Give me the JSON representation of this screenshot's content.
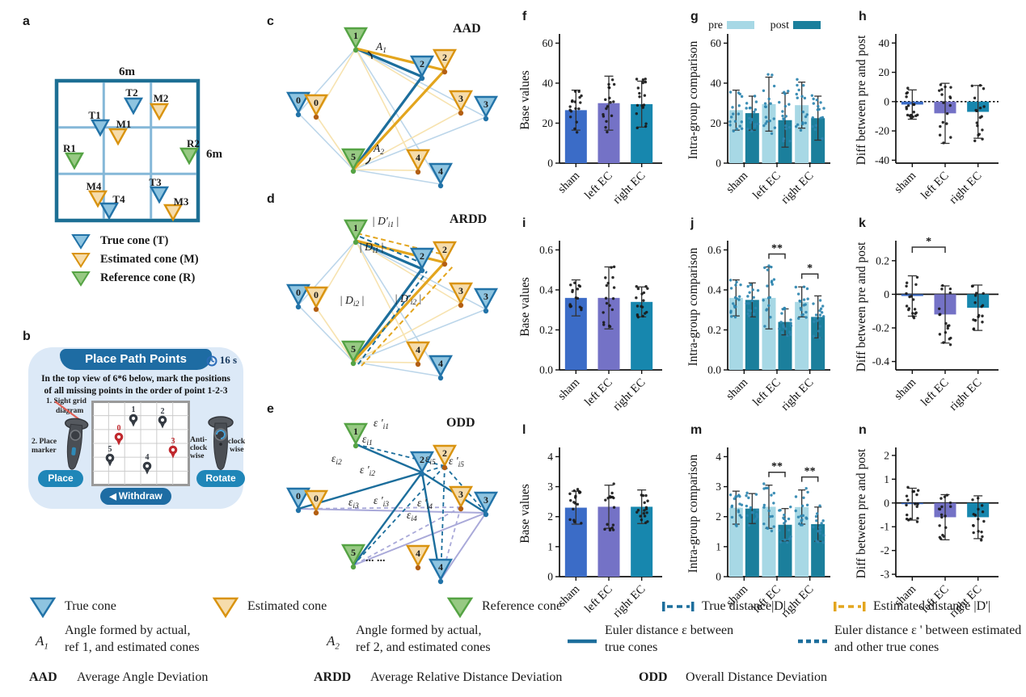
{
  "colors": {
    "sham": "#3b6cc7",
    "left_ec": "#7472c6",
    "right_ec": "#1787ae",
    "pre": "#a7d8e5",
    "post": "#1b7f9c",
    "teal_line": "#1c6e9c",
    "orange_line": "#e3a51d",
    "light_blue_line": "#bcd6ea",
    "light_yellow_line": "#f7e3b0",
    "purple_line": "#a9a9d9",
    "cone_true": "#8ec4e0",
    "cone_true_border": "#2273a8",
    "cone_true_dot": "#2273a8",
    "cone_est": "#f6dcab",
    "cone_est_border": "#d9930f",
    "cone_est_dot": "#b35f13",
    "cone_ref": "#97c983",
    "cone_ref_border": "#55a344",
    "cone_ref_dot": "#55a344",
    "grid_border": "#1d6f94",
    "grid_inner": "#85b8d8",
    "red_pin": "#c0282d",
    "dark_pin": "#343a42",
    "banner": "#1e6ca3",
    "button": "#1f86b8",
    "card_bg": "#dce9f7"
  },
  "icons": {
    "back_arrow": "◀",
    "clock_icon": "clock",
    "laser_icon": "laser-line"
  },
  "panel_a": {
    "label": "a",
    "dim_top": "6m",
    "dim_right": "6m",
    "cones": [
      {
        "id": "T2",
        "label": "T2",
        "type": "true"
      },
      {
        "id": "M2",
        "label": "M2",
        "type": "est"
      },
      {
        "id": "T1",
        "label": "T1",
        "type": "true"
      },
      {
        "id": "M1",
        "label": "M1",
        "type": "est"
      },
      {
        "id": "R1",
        "label": "R1",
        "type": "ref"
      },
      {
        "id": "R2",
        "label": "R2",
        "type": "ref"
      },
      {
        "id": "M4",
        "label": "M4",
        "type": "est"
      },
      {
        "id": "T4",
        "label": "T4",
        "type": "true"
      },
      {
        "id": "T3",
        "label": "T3",
        "type": "true"
      },
      {
        "id": "M3",
        "label": "M3",
        "type": "est"
      }
    ],
    "legend": [
      {
        "label": "True cone (T)",
        "type": "true"
      },
      {
        "label": "Estimated cone (M)",
        "type": "est"
      },
      {
        "label": "Reference cone (R)",
        "type": "ref"
      }
    ]
  },
  "panel_b": {
    "label": "b",
    "title": "Place Path Points",
    "timer": "16 s",
    "instruction1": "In the top view of 6*6 below, mark the positions",
    "instruction2": "of all missing points in the order of point 1-2-3",
    "hint_sight1": "1. Sight grid",
    "hint_sight2": "diagram",
    "hint_place1": "2. Place",
    "hint_place2": "marker",
    "hint_anti1": "Anti-",
    "hint_anti2": "clock",
    "hint_anti3": "wise",
    "hint_clock1": "clock",
    "hint_clock2": "wise",
    "place_button": "Place",
    "rotate_button": "Rotate",
    "withdraw_button": "Withdraw",
    "pins": [
      {
        "label": "1",
        "color": "dark"
      },
      {
        "label": "2",
        "color": "dark"
      },
      {
        "label": "0",
        "color": "red"
      },
      {
        "label": "3",
        "color": "red"
      },
      {
        "label": "5",
        "color": "dark"
      },
      {
        "label": "4",
        "color": "dark"
      }
    ]
  },
  "panel_c": {
    "label": "c",
    "title": "AAD",
    "cones": {
      "g1": "1",
      "b0": "0",
      "o0": "0",
      "b2": "2",
      "o2": "2",
      "o3": "3",
      "b3": "3",
      "g5": "5",
      "o4": "4",
      "b4": "4"
    },
    "labels": {
      "A1": {
        "sym": "A",
        "sub": "1"
      },
      "A2": {
        "sym": "A",
        "sub": "2"
      }
    }
  },
  "panel_d": {
    "label": "d",
    "title": "ARDD",
    "cones": {
      "g1": "1",
      "b0": "0",
      "o0": "0",
      "b2": "2",
      "o2": "2",
      "o3": "3",
      "b3": "3",
      "g5": "5",
      "o4": "4",
      "b4": "4"
    },
    "labels": {
      "Dp1": {
        "pre": "| D'",
        "sub": "i1",
        "post": " |"
      },
      "Di1": {
        "pre": "| D",
        "sub": "i1",
        "post": " |"
      },
      "Di2": {
        "pre": "| D",
        "sub": "i2",
        "post": " |"
      },
      "Dp2": {
        "pre": "| D'",
        "sub": "i2",
        "post": " |"
      }
    }
  },
  "panel_e": {
    "label": "e",
    "title": "ODD",
    "cones": {
      "g1": "1",
      "b0": "0",
      "o0": "0",
      "b2": "2",
      "o2": "2",
      "o3": "3",
      "b3": "3",
      "g5": "5",
      "o4": "4",
      "b4": "4"
    },
    "labels": {
      "e1p": {
        "pre": "ε '",
        "sub": "i1"
      },
      "e1": {
        "pre": "ε",
        "sub": "i1"
      },
      "e2": {
        "pre": "ε",
        "sub": "i2"
      },
      "e2p": {
        "pre": "ε '",
        "sub": "i2"
      },
      "e5": {
        "pre": "ε",
        "sub": "i5"
      },
      "e5p": {
        "pre": "ε '",
        "sub": "i5"
      },
      "e3": {
        "pre": "ε",
        "sub": "i3"
      },
      "e3p": {
        "pre": "ε '",
        "sub": "i3"
      },
      "e4p": {
        "pre": "ε '",
        "sub": "i4"
      },
      "e4": {
        "pre": "ε",
        "sub": "i4"
      },
      "ellipsis": "... ..."
    }
  },
  "chart_data": [
    {
      "id": "f",
      "panel_letter": "f",
      "type": "bar",
      "ylabel": "Base values",
      "ylim": [
        0,
        63
      ],
      "yticks": [
        [
          0,
          "0"
        ],
        [
          20,
          "20"
        ],
        [
          40,
          "40"
        ],
        [
          60,
          "60"
        ]
      ],
      "categories": [
        "sham",
        "left EC",
        "right EC"
      ],
      "values": [
        26.5,
        30,
        29.5
      ],
      "errors": [
        10,
        13.5,
        11.5
      ],
      "dot_color": "#1a1a1a",
      "seed": 3
    },
    {
      "id": "g",
      "panel_letter": "g",
      "type": "grouped",
      "ylabel": "Intra-group comparison",
      "ylim": [
        0,
        63
      ],
      "yticks": [
        [
          0,
          "0"
        ],
        [
          20,
          "20"
        ],
        [
          40,
          "40"
        ],
        [
          60,
          "60"
        ]
      ],
      "categories": [
        "sham",
        "left EC",
        "right EC"
      ],
      "legend": [
        "pre",
        "post"
      ],
      "series": [
        {
          "name": "pre",
          "values": [
            26.5,
            29.5,
            29
          ],
          "errors": [
            10,
            13.5,
            11.5
          ]
        },
        {
          "name": "post",
          "values": [
            25,
            21.5,
            22.5
          ],
          "errors": [
            8.5,
            13.5,
            11
          ]
        }
      ],
      "dot_color": "#2e86b0",
      "seed": 5
    },
    {
      "id": "h",
      "panel_letter": "h",
      "type": "bar",
      "zero_line": "dotted",
      "ylabel": "Diff between pre and post",
      "ylim": [
        -42,
        44
      ],
      "yticks": [
        [
          -40,
          "-40"
        ],
        [
          -20,
          "-20"
        ],
        [
          0,
          "0"
        ],
        [
          20,
          "20"
        ],
        [
          40,
          "40"
        ]
      ],
      "categories": [
        "sham",
        "left EC",
        "right EC"
      ],
      "values": [
        -2,
        -8,
        -7
      ],
      "errors": [
        10,
        20.5,
        18
      ],
      "dot_color": "#1a1a1a",
      "seed": 7
    },
    {
      "id": "i",
      "panel_letter": "i",
      "type": "bar",
      "ylabel": "Base values",
      "ylim": [
        0,
        0.63
      ],
      "yticks": [
        [
          0,
          "0.0"
        ],
        [
          0.2,
          "0.2"
        ],
        [
          0.4,
          "0.4"
        ],
        [
          0.6,
          "0.6"
        ]
      ],
      "categories": [
        "sham",
        "left EC",
        "right EC"
      ],
      "values": [
        0.36,
        0.36,
        0.34
      ],
      "errors": [
        0.09,
        0.155,
        0.075
      ],
      "dot_color": "#1a1a1a",
      "seed": 11
    },
    {
      "id": "j",
      "panel_letter": "j",
      "type": "grouped",
      "ylabel": "Intra-group comparison",
      "ylim": [
        0,
        0.63
      ],
      "yticks": [
        [
          0,
          "0.0"
        ],
        [
          0.2,
          "0.2"
        ],
        [
          0.4,
          "0.4"
        ],
        [
          0.6,
          "0.6"
        ]
      ],
      "categories": [
        "sham",
        "left EC",
        "right EC"
      ],
      "series": [
        {
          "name": "pre",
          "values": [
            0.36,
            0.36,
            0.34
          ],
          "errors": [
            0.09,
            0.155,
            0.075
          ]
        },
        {
          "name": "post",
          "values": [
            0.35,
            0.24,
            0.265
          ],
          "errors": [
            0.085,
            0.065,
            0.105
          ]
        }
      ],
      "sig_pairs": [
        {
          "cat": 1,
          "label": "**"
        },
        {
          "cat": 2,
          "label": "*"
        }
      ],
      "dot_color": "#2e86b0",
      "seed": 13
    },
    {
      "id": "k",
      "panel_letter": "k",
      "type": "bar",
      "zero_line": "solid",
      "ylabel": "Diff between pre and post",
      "ylim": [
        -0.45,
        0.3
      ],
      "yticks": [
        [
          -0.4,
          "-0.4"
        ],
        [
          -0.2,
          "-0.2"
        ],
        [
          0,
          "0"
        ],
        [
          0.2,
          "0.2"
        ]
      ],
      "categories": [
        "sham",
        "left EC",
        "right EC"
      ],
      "values": [
        -0.01,
        -0.12,
        -0.08
      ],
      "errors": [
        0.12,
        0.17,
        0.135
      ],
      "sig_span": {
        "from": 0,
        "to": 1,
        "label": "*"
      },
      "dot_color": "#1a1a1a",
      "seed": 17
    },
    {
      "id": "l",
      "panel_letter": "l",
      "type": "bar",
      "ylabel": "Base values",
      "ylim": [
        0,
        4.2
      ],
      "yticks": [
        [
          0,
          "0"
        ],
        [
          1,
          "1"
        ],
        [
          2,
          "2"
        ],
        [
          3,
          "3"
        ],
        [
          4,
          "4"
        ]
      ],
      "categories": [
        "sham",
        "left EC",
        "right EC"
      ],
      "values": [
        2.3,
        2.33,
        2.33
      ],
      "errors": [
        0.55,
        0.72,
        0.56
      ],
      "dot_color": "#1a1a1a",
      "seed": 19
    },
    {
      "id": "m",
      "panel_letter": "m",
      "type": "grouped",
      "ylabel": "Intra-group comparison",
      "ylim": [
        0,
        4.2
      ],
      "yticks": [
        [
          0,
          "0"
        ],
        [
          1,
          "1"
        ],
        [
          2,
          "2"
        ],
        [
          3,
          "3"
        ],
        [
          4,
          "4"
        ]
      ],
      "categories": [
        "sham",
        "left EC",
        "right EC"
      ],
      "series": [
        {
          "name": "pre",
          "values": [
            2.3,
            2.33,
            2.32
          ],
          "errors": [
            0.55,
            0.72,
            0.57
          ]
        },
        {
          "name": "post",
          "values": [
            2.27,
            1.73,
            1.75
          ],
          "errors": [
            0.5,
            0.54,
            0.57
          ]
        }
      ],
      "sig_pairs": [
        {
          "cat": 1,
          "label": "**"
        },
        {
          "cat": 2,
          "label": "**"
        }
      ],
      "dot_color": "#2e86b0",
      "seed": 23
    },
    {
      "id": "n",
      "panel_letter": "n",
      "type": "bar",
      "zero_line": "solid",
      "ylabel": "Diff between pre and post",
      "ylim": [
        -3.1,
        2.2
      ],
      "yticks": [
        [
          -3,
          "-3"
        ],
        [
          -2,
          "-2"
        ],
        [
          -1,
          "-1"
        ],
        [
          0,
          "0"
        ],
        [
          1,
          "1"
        ],
        [
          2,
          "2"
        ]
      ],
      "categories": [
        "sham",
        "left EC",
        "right EC"
      ],
      "values": [
        -0.05,
        -0.6,
        -0.6
      ],
      "errors": [
        0.67,
        0.95,
        0.9
      ],
      "dot_color": "#1a1a1a",
      "seed": 29
    }
  ],
  "legend_bottom": {
    "true_cone": "True cone",
    "estimated_cone": "Estimated cone",
    "reference_cone": "Reference cone",
    "true_distance": "True distance",
    "true_distance_sym": "|D|",
    "estimated_distance": "Estimated distance",
    "estimated_distance_sym": "|D'|",
    "a1_sym": "A",
    "a1_sub": "1",
    "a1_line1": "Angle formed by actual,",
    "a1_line2": "ref 1, and estimated cones",
    "a2_sym": "A",
    "a2_sub": "2",
    "a2_line1": "Angle formed by actual,",
    "a2_line2": "ref 2, and estimated cones",
    "euler_solid_line1": "Euler distance ε between",
    "euler_solid_line2": "true cones",
    "euler_dashed_line1": "Euler distance ε ' between estimated",
    "euler_dashed_line2": "and other true cones",
    "aad_abbr": "AAD",
    "aad_desc": "Average Angle Deviation",
    "ardd_abbr": "ARDD",
    "ardd_desc": "Average Relative Distance Deviation",
    "odd_abbr": "ODD",
    "odd_desc": "Overall Distance Deviation"
  }
}
